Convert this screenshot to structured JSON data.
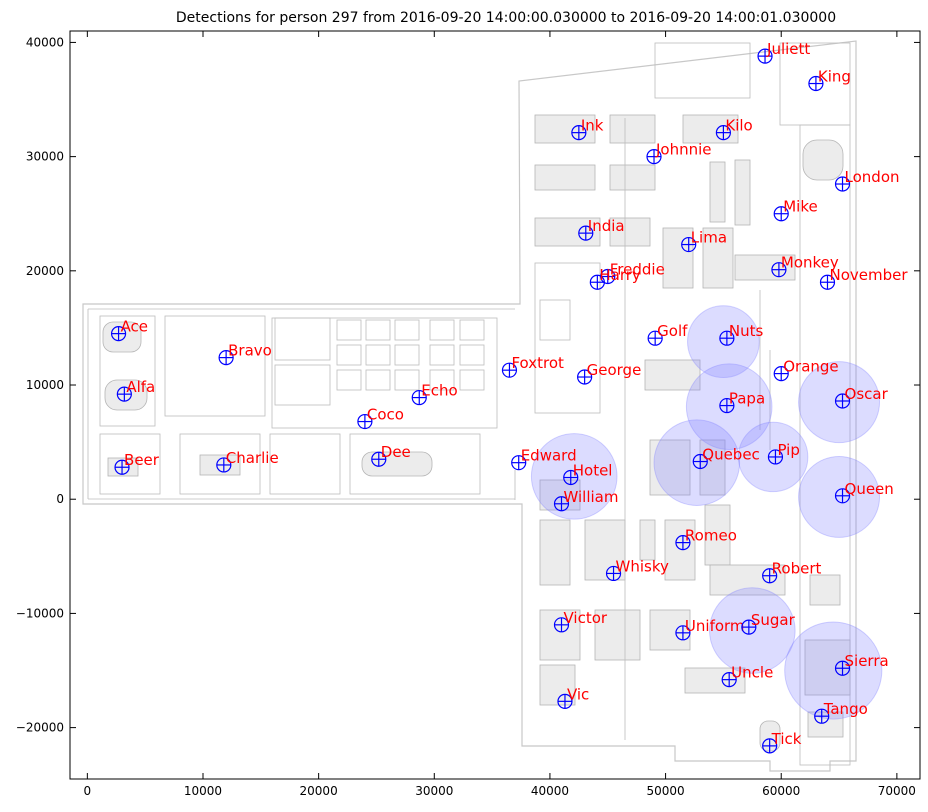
{
  "chart_data": {
    "type": "scatter",
    "title": "Detections for person 297 from 2016-09-20 14:00:00.030000 to 2016-09-20 14:00:01.030000",
    "xlabel": "",
    "ylabel": "",
    "xlim": [
      -1500,
      72000
    ],
    "ylim": [
      -24500,
      41000
    ],
    "xticks": [
      0,
      10000,
      20000,
      30000,
      40000,
      50000,
      60000,
      70000
    ],
    "yticks": [
      -20000,
      -10000,
      0,
      10000,
      20000,
      30000,
      40000
    ],
    "xtick_labels": [
      "0",
      "10000",
      "20000",
      "30000",
      "40000",
      "50000",
      "60000",
      "70000"
    ],
    "ytick_labels": [
      "−20000",
      "−10000",
      "0",
      "10000",
      "20000",
      "30000",
      "40000"
    ],
    "marker_color": "#0000ff",
    "label_color": "#ff0000",
    "detection_color": "#8080ff",
    "points": [
      {
        "name": "Ace",
        "x": 2700,
        "y": 14500
      },
      {
        "name": "Alfa",
        "x": 3200,
        "y": 9200
      },
      {
        "name": "Beer",
        "x": 3000,
        "y": 2800
      },
      {
        "name": "Bravo",
        "x": 12000,
        "y": 12400
      },
      {
        "name": "Charlie",
        "x": 11800,
        "y": 3000
      },
      {
        "name": "Coco",
        "x": 24000,
        "y": 6800
      },
      {
        "name": "Dee",
        "x": 25200,
        "y": 3500
      },
      {
        "name": "Echo",
        "x": 28700,
        "y": 8900
      },
      {
        "name": "Foxtrot",
        "x": 36500,
        "y": 11300
      },
      {
        "name": "Edward",
        "x": 37300,
        "y": 3200
      },
      {
        "name": "Hotel",
        "x": 41800,
        "y": 1900
      },
      {
        "name": "William",
        "x": 41000,
        "y": -400
      },
      {
        "name": "George",
        "x": 43000,
        "y": 10700
      },
      {
        "name": "Freddie",
        "x": 45000,
        "y": 19500
      },
      {
        "name": "Harry",
        "x": 44100,
        "y": 19000
      },
      {
        "name": "India",
        "x": 43100,
        "y": 23300
      },
      {
        "name": "Ink",
        "x": 42500,
        "y": 32100
      },
      {
        "name": "Johnnie",
        "x": 49000,
        "y": 30000
      },
      {
        "name": "Kilo",
        "x": 55000,
        "y": 32100
      },
      {
        "name": "Juliett",
        "x": 58600,
        "y": 38800
      },
      {
        "name": "King",
        "x": 63000,
        "y": 36400
      },
      {
        "name": "London",
        "x": 65300,
        "y": 27600
      },
      {
        "name": "Mike",
        "x": 60000,
        "y": 25000
      },
      {
        "name": "Lima",
        "x": 52000,
        "y": 22300
      },
      {
        "name": "Monkey",
        "x": 59800,
        "y": 20100
      },
      {
        "name": "November",
        "x": 64000,
        "y": 19000
      },
      {
        "name": "Golf",
        "x": 49100,
        "y": 14100
      },
      {
        "name": "Nuts",
        "x": 55300,
        "y": 14100
      },
      {
        "name": "Orange",
        "x": 60000,
        "y": 11000
      },
      {
        "name": "Papa",
        "x": 55300,
        "y": 8200
      },
      {
        "name": "Oscar",
        "x": 65300,
        "y": 8600
      },
      {
        "name": "Quebec",
        "x": 53000,
        "y": 3300
      },
      {
        "name": "Pip",
        "x": 59500,
        "y": 3700
      },
      {
        "name": "Queen",
        "x": 65300,
        "y": 300
      },
      {
        "name": "Romeo",
        "x": 51500,
        "y": -3800
      },
      {
        "name": "Whisky",
        "x": 45500,
        "y": -6500
      },
      {
        "name": "Robert",
        "x": 59000,
        "y": -6700
      },
      {
        "name": "Victor",
        "x": 41000,
        "y": -11000
      },
      {
        "name": "Uniform",
        "x": 51500,
        "y": -11700
      },
      {
        "name": "Sugar",
        "x": 57200,
        "y": -11200
      },
      {
        "name": "Sierra",
        "x": 65300,
        "y": -14800
      },
      {
        "name": "Uncle",
        "x": 55500,
        "y": -15800
      },
      {
        "name": "Vic",
        "x": 41300,
        "y": -17700
      },
      {
        "name": "Tango",
        "x": 63500,
        "y": -19000
      },
      {
        "name": "Tick",
        "x": 59000,
        "y": -21600
      }
    ],
    "detections": [
      {
        "x": 42100,
        "y": 2000,
        "r": 3700
      },
      {
        "x": 55000,
        "y": 13800,
        "r": 3100
      },
      {
        "x": 55500,
        "y": 8100,
        "r": 3700
      },
      {
        "x": 65000,
        "y": 8500,
        "r": 3500
      },
      {
        "x": 52700,
        "y": 3200,
        "r": 3700
      },
      {
        "x": 59300,
        "y": 3700,
        "r": 3000
      },
      {
        "x": 65000,
        "y": 200,
        "r": 3500
      },
      {
        "x": 57500,
        "y": -11500,
        "r": 3700
      },
      {
        "x": 64500,
        "y": -15000,
        "r": 4200
      }
    ]
  }
}
